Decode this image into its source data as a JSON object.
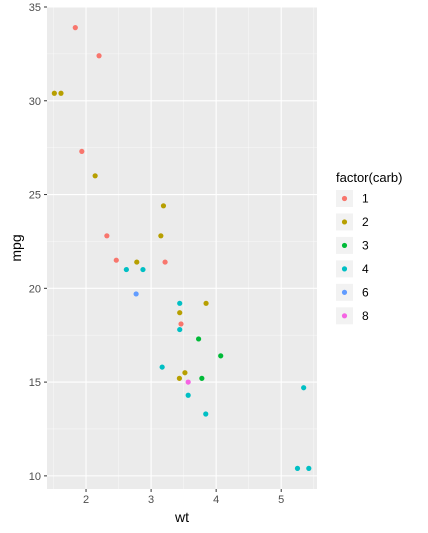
{
  "chart_data": {
    "type": "scatter",
    "xlabel": "wt",
    "ylabel": "mpg",
    "xlim": [
      1.4,
      5.55
    ],
    "ylim": [
      9.3,
      35.0
    ],
    "x_ticks": [
      2,
      3,
      4,
      5
    ],
    "y_ticks": [
      10,
      15,
      20,
      25,
      30,
      35
    ],
    "x_tick_labels": [
      "2",
      "3",
      "4",
      "5"
    ],
    "y_tick_labels": [
      "10",
      "15",
      "20",
      "25",
      "30",
      "35"
    ],
    "grid": true,
    "legend": {
      "title": "factor(carb)",
      "position": "right",
      "levels": [
        "1",
        "2",
        "3",
        "4",
        "6",
        "8"
      ]
    },
    "colors": {
      "1": "#F8766D",
      "2": "#B79F00",
      "3": "#00BA38",
      "4": "#00BFC4",
      "6": "#619CFF",
      "8": "#F564E3",
      "panel_bg": "#EBEBEB",
      "grid_major": "#FFFFFF"
    },
    "series": [
      {
        "name": "1",
        "x": [
          2.32,
          3.215,
          3.46,
          2.2,
          1.835,
          1.935,
          2.465
        ],
        "y": [
          22.8,
          21.4,
          18.1,
          32.4,
          33.9,
          27.3,
          21.5
        ]
      },
      {
        "name": "2",
        "x": [
          3.44,
          3.19,
          3.15,
          3.52,
          3.845,
          2.78,
          2.14,
          1.513,
          1.615,
          3.435
        ],
        "y": [
          18.7,
          24.4,
          22.8,
          15.5,
          19.2,
          21.4,
          26.0,
          30.4,
          30.4,
          15.2
        ]
      },
      {
        "name": "3",
        "x": [
          4.07,
          3.73,
          3.78
        ],
        "y": [
          16.4,
          17.3,
          15.2
        ]
      },
      {
        "name": "4",
        "x": [
          2.62,
          2.875,
          3.57,
          3.44,
          3.44,
          5.25,
          5.424,
          5.345,
          3.84,
          3.17
        ],
        "y": [
          21.0,
          21.0,
          14.3,
          19.2,
          17.8,
          10.4,
          10.4,
          14.7,
          13.3,
          15.8
        ]
      },
      {
        "name": "6",
        "x": [
          2.77
        ],
        "y": [
          19.7
        ]
      },
      {
        "name": "8",
        "x": [
          3.57
        ],
        "y": [
          15.0
        ]
      }
    ]
  }
}
